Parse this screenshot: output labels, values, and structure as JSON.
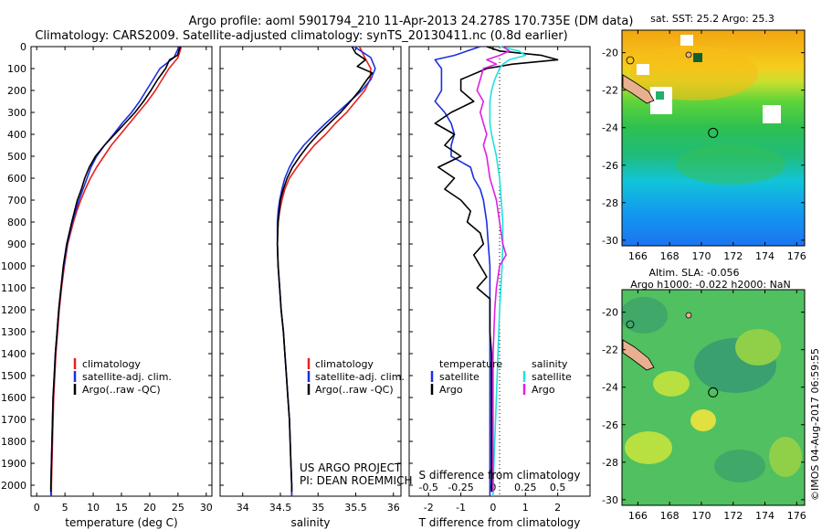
{
  "header": {
    "line1": "Argo profile: aoml 5901794_210 11-Apr-2013 24.278S 170.735E (DM data)",
    "line2": "Climatology: CARS2009. Satellite-adjusted climatology: synTS_20130411.nc (0.8d earlier)"
  },
  "colors": {
    "climatology": "#e8211d",
    "satellite": "#1b2fe0",
    "argo": "#000000",
    "salinity_satellite": "#22e0e0",
    "salinity_argo": "#e020e0",
    "land": "#e8b090"
  },
  "depth_axis": {
    "ticks": [
      0,
      100,
      200,
      300,
      400,
      500,
      600,
      700,
      800,
      900,
      1000,
      1100,
      1200,
      1300,
      1400,
      1500,
      1600,
      1700,
      1800,
      1900,
      2000
    ],
    "ylim": [
      0,
      2050
    ]
  },
  "legend": {
    "climatology": "climatology",
    "satellite": "satellite-adj. clim.",
    "argo": "Argo(..raw -QC)",
    "diff_temperature_title": "temperature",
    "diff_salinity_title": "salinity",
    "diff_satellite": "satellite",
    "diff_argo": "Argo"
  },
  "project": {
    "line1": "US ARGO PROJECT",
    "line2": "PI: DEAN ROEMMICH"
  },
  "maps": {
    "sst_title": "sat. SST: 25.2 Argo: 25.3",
    "sla_title1": "Altim. SLA: -0.056",
    "sla_title2": "Argo h1000: -0.022 h2000: NaN",
    "lon_ticks": [
      "166",
      "168",
      "170",
      "172",
      "174",
      "176"
    ],
    "lat_ticks": [
      "-20",
      "-22",
      "-24",
      "-26",
      "-28",
      "-30"
    ],
    "float_lon": 170.735,
    "float_lat": -24.278
  },
  "credit": "©IMOS 04-Aug-2017 06:59:55",
  "chart_data": [
    {
      "type": "line",
      "name": "temperature",
      "xlabel": "temperature (deg C)",
      "xlim": [
        -1,
        31
      ],
      "xticks": [
        0,
        5,
        10,
        15,
        20,
        25,
        30
      ],
      "series": [
        {
          "name": "climatology",
          "depth": [
            0,
            50,
            100,
            150,
            200,
            250,
            300,
            350,
            400,
            450,
            500,
            550,
            600,
            650,
            700,
            750,
            800,
            900,
            1000,
            1100,
            1200,
            1300,
            1400,
            1500,
            1600,
            1700,
            1800,
            1900,
            2000,
            2050
          ],
          "values": [
            25.6,
            25.0,
            23.4,
            22.2,
            21.0,
            19.6,
            18.0,
            16.4,
            14.8,
            13.2,
            11.9,
            10.6,
            9.5,
            8.6,
            7.8,
            7.1,
            6.5,
            5.5,
            4.9,
            4.4,
            4.0,
            3.7,
            3.4,
            3.2,
            3.0,
            2.9,
            2.8,
            2.7,
            2.6,
            2.6
          ]
        },
        {
          "name": "satellite-adj. clim.",
          "depth": [
            0,
            50,
            100,
            150,
            200,
            250,
            300,
            350,
            400,
            450,
            500,
            550,
            600,
            650,
            700,
            750,
            800,
            900,
            1000,
            1100,
            1200,
            1300,
            1400,
            1500,
            1600,
            1700,
            1800,
            1900,
            2000,
            2050
          ],
          "values": [
            25.2,
            24.3,
            21.8,
            20.6,
            19.4,
            18.2,
            16.8,
            15.1,
            13.6,
            12.0,
            10.6,
            9.6,
            8.9,
            8.2,
            7.5,
            6.9,
            6.3,
            5.4,
            4.8,
            4.3,
            3.9,
            3.6,
            3.3,
            3.1,
            2.9,
            2.8,
            2.7,
            2.6,
            2.5,
            2.5
          ]
        },
        {
          "name": "Argo",
          "depth": [
            0,
            40,
            60,
            100,
            150,
            200,
            250,
            300,
            350,
            400,
            450,
            500,
            550,
            600,
            650,
            700,
            750,
            800,
            900,
            1000,
            1100,
            1200,
            1300,
            1400,
            1500,
            1600,
            1700,
            1800,
            1900,
            2000,
            2030
          ],
          "values": [
            25.4,
            24.9,
            23.5,
            22.8,
            21.4,
            20.2,
            18.9,
            17.4,
            15.6,
            13.8,
            12.0,
            10.4,
            9.3,
            8.5,
            7.9,
            7.2,
            6.7,
            6.2,
            5.3,
            4.7,
            4.3,
            3.9,
            3.6,
            3.3,
            3.1,
            2.9,
            2.8,
            2.7,
            2.6,
            2.5,
            2.5
          ]
        }
      ]
    },
    {
      "type": "line",
      "name": "salinity",
      "xlabel": "salinity",
      "xlim": [
        33.7,
        36.1
      ],
      "xticks": [
        34,
        34.5,
        35,
        35.5,
        36
      ],
      "series": [
        {
          "name": "climatology",
          "depth": [
            0,
            50,
            100,
            150,
            200,
            250,
            300,
            350,
            400,
            450,
            500,
            550,
            600,
            650,
            700,
            750,
            800,
            900,
            1000,
            1100,
            1200,
            1300,
            1400,
            1500,
            1600,
            1700,
            1800,
            1900,
            2000,
            2050
          ],
          "values": [
            35.55,
            35.62,
            35.7,
            35.69,
            35.62,
            35.5,
            35.38,
            35.23,
            35.1,
            34.95,
            34.83,
            34.72,
            34.62,
            34.56,
            34.52,
            34.49,
            34.47,
            34.46,
            34.47,
            34.49,
            34.51,
            34.54,
            34.56,
            34.58,
            34.6,
            34.62,
            34.63,
            34.64,
            34.65,
            34.65
          ]
        },
        {
          "name": "satellite-adj. clim.",
          "depth": [
            0,
            50,
            100,
            150,
            200,
            250,
            300,
            350,
            400,
            450,
            500,
            550,
            600,
            650,
            700,
            750,
            800,
            900,
            1000,
            1100,
            1200,
            1300,
            1400,
            1500,
            1600,
            1700,
            1800,
            1900,
            2000,
            2050
          ],
          "values": [
            35.48,
            35.7,
            35.76,
            35.7,
            35.58,
            35.42,
            35.26,
            35.1,
            34.95,
            34.81,
            34.7,
            34.62,
            34.56,
            34.52,
            34.49,
            34.47,
            34.46,
            34.46,
            34.47,
            34.49,
            34.51,
            34.54,
            34.56,
            34.58,
            34.6,
            34.62,
            34.63,
            34.64,
            34.65,
            34.65
          ]
        },
        {
          "name": "Argo",
          "depth": [
            0,
            30,
            60,
            90,
            120,
            150,
            200,
            250,
            300,
            350,
            400,
            450,
            500,
            550,
            600,
            650,
            700,
            800,
            900,
            1000,
            1100,
            1200,
            1300,
            1400,
            1500,
            1600,
            1700,
            1800,
            1900,
            2000,
            2030
          ],
          "values": [
            35.45,
            35.5,
            35.63,
            35.52,
            35.72,
            35.65,
            35.55,
            35.43,
            35.3,
            35.15,
            35.0,
            34.87,
            34.76,
            34.66,
            34.59,
            34.54,
            34.5,
            34.47,
            34.46,
            34.47,
            34.49,
            34.51,
            34.54,
            34.56,
            34.58,
            34.6,
            34.62,
            34.63,
            34.64,
            34.65,
            34.65
          ]
        }
      ]
    },
    {
      "type": "line",
      "name": "differences",
      "xlabel": "T difference from climatology",
      "xlabel2": "S difference from climatology",
      "xlim": [
        -2.6,
        3.0
      ],
      "xticks": [
        -2,
        -1,
        0,
        1,
        2
      ],
      "s_ticks": [
        {
          "label": "-0.5",
          "at": -2
        },
        {
          "label": "-0.25",
          "at": -1
        },
        {
          "label": "0",
          "at": 0
        },
        {
          "label": "0.25",
          "at": 1
        },
        {
          "label": "0.5",
          "at": 2
        }
      ],
      "series": [
        {
          "name": "temperature satellite",
          "depth": [
            0,
            20,
            40,
            60,
            80,
            100,
            150,
            200,
            250,
            300,
            350,
            400,
            450,
            500,
            550,
            600,
            650,
            700,
            800,
            900,
            1000,
            1100,
            1200,
            1400,
            1600,
            1800,
            2000,
            2050
          ],
          "values": [
            -0.4,
            -0.8,
            -1.2,
            -1.8,
            -1.7,
            -1.6,
            -1.6,
            -1.6,
            -1.8,
            -1.5,
            -1.3,
            -1.2,
            -1.3,
            -1.3,
            -0.7,
            -0.6,
            -0.4,
            -0.3,
            -0.2,
            -0.15,
            -0.1,
            -0.1,
            -0.1,
            -0.1,
            -0.1,
            -0.1,
            -0.1,
            -0.1
          ]
        },
        {
          "name": "temperature Argo",
          "depth": [
            0,
            20,
            40,
            60,
            80,
            100,
            150,
            200,
            250,
            300,
            350,
            400,
            450,
            500,
            550,
            600,
            650,
            700,
            750,
            800,
            850,
            900,
            950,
            1000,
            1050,
            1100,
            1150,
            1200,
            1300,
            1400,
            1600,
            1800,
            2000,
            2030
          ],
          "values": [
            -0.2,
            0.2,
            1.5,
            2.0,
            0.6,
            -0.2,
            -1.0,
            -1.0,
            -0.6,
            -1.3,
            -1.8,
            -1.2,
            -1.5,
            -1.0,
            -1.7,
            -1.2,
            -1.5,
            -1.0,
            -0.7,
            -0.8,
            -0.4,
            -0.3,
            -0.6,
            -0.4,
            -0.2,
            -0.5,
            -0.1,
            -0.1,
            -0.1,
            -0.05,
            -0.05,
            -0.05,
            -0.05,
            -0.05
          ]
        },
        {
          "name": "salinity satellite",
          "depth": [
            0,
            20,
            40,
            60,
            80,
            100,
            150,
            200,
            250,
            300,
            350,
            400,
            500,
            600,
            700,
            800,
            900,
            1000,
            1200,
            1400,
            1600,
            1800,
            2000,
            2050
          ],
          "values": [
            0.2,
            0.8,
            1.0,
            0.5,
            0.3,
            0.2,
            0.05,
            -0.05,
            -0.1,
            -0.1,
            -0.1,
            -0.05,
            0.1,
            0.2,
            0.25,
            0.3,
            0.3,
            0.28,
            0.2,
            0.15,
            0.1,
            0.05,
            0.0,
            0.0
          ]
        },
        {
          "name": "salinity Argo",
          "depth": [
            0,
            20,
            40,
            60,
            80,
            100,
            150,
            200,
            250,
            300,
            350,
            400,
            450,
            500,
            600,
            700,
            800,
            900,
            950,
            1000,
            1100,
            1200,
            1400,
            1600,
            1800,
            2000,
            2030
          ],
          "values": [
            0.3,
            0.5,
            0.2,
            -0.2,
            0.1,
            -0.3,
            -0.4,
            -0.5,
            -0.3,
            -0.4,
            -0.3,
            -0.2,
            -0.3,
            -0.2,
            -0.1,
            0.1,
            0.2,
            0.3,
            0.4,
            0.2,
            0.1,
            0.05,
            0.0,
            0.0,
            0.0,
            0.0,
            0.0
          ]
        }
      ]
    }
  ]
}
